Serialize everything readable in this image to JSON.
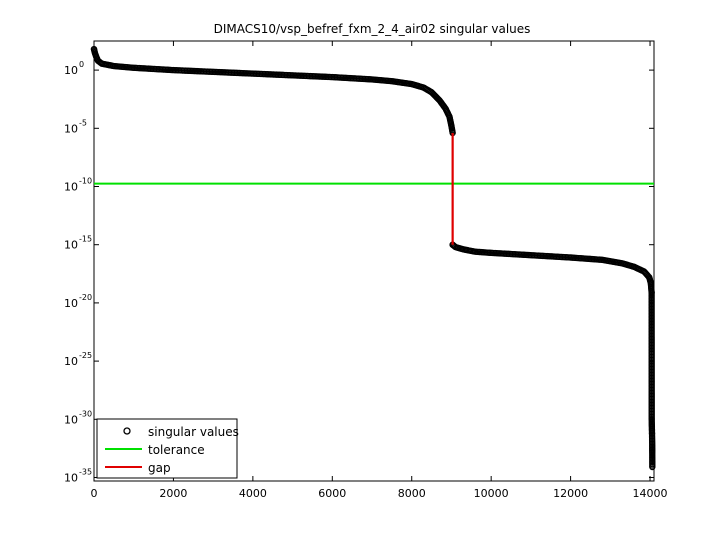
{
  "chart_data": {
    "type": "scatter",
    "title": "DIMACS10/vsp_befref_fxm_2_4_air02 singular values",
    "xlabel": "",
    "ylabel": "",
    "xlim": [
      0,
      14100
    ],
    "ylim_log10": [
      -35.3,
      2.5
    ],
    "y_scale": "log",
    "x_ticks": [
      "0",
      "2000",
      "4000",
      "6000",
      "8000",
      "10000",
      "12000",
      "14000"
    ],
    "y_ticks": [
      {
        "base": "10",
        "exp": "0"
      },
      {
        "base": "10",
        "exp": "-5"
      },
      {
        "base": "10",
        "exp": "-10"
      },
      {
        "base": "10",
        "exp": "-15"
      },
      {
        "base": "10",
        "exp": "-20"
      },
      {
        "base": "10",
        "exp": "-25"
      },
      {
        "base": "10",
        "exp": "-30"
      },
      {
        "base": "10",
        "exp": "-35"
      }
    ],
    "grid": false,
    "legend_position": "bottom-left",
    "series": [
      {
        "name": "singular values",
        "marker": "circle",
        "color": "#000000",
        "points_log10": [
          [
            0,
            1.8
          ],
          [
            20,
            1.5
          ],
          [
            50,
            1.2
          ],
          [
            100,
            0.8
          ],
          [
            200,
            0.55
          ],
          [
            500,
            0.35
          ],
          [
            1000,
            0.2
          ],
          [
            2000,
            0.0
          ],
          [
            3000,
            -0.15
          ],
          [
            4000,
            -0.3
          ],
          [
            5000,
            -0.45
          ],
          [
            6000,
            -0.6
          ],
          [
            7000,
            -0.8
          ],
          [
            7500,
            -0.95
          ],
          [
            8000,
            -1.2
          ],
          [
            8300,
            -1.5
          ],
          [
            8500,
            -1.9
          ],
          [
            8700,
            -2.6
          ],
          [
            8850,
            -3.3
          ],
          [
            8950,
            -4.0
          ],
          [
            9000,
            -4.8
          ],
          [
            9030,
            -5.4
          ],
          [
            9030,
            -15.0
          ],
          [
            9100,
            -15.2
          ],
          [
            9300,
            -15.4
          ],
          [
            9600,
            -15.6
          ],
          [
            10000,
            -15.7
          ],
          [
            11000,
            -15.9
          ],
          [
            12000,
            -16.1
          ],
          [
            12800,
            -16.3
          ],
          [
            13300,
            -16.6
          ],
          [
            13600,
            -16.9
          ],
          [
            13850,
            -17.3
          ],
          [
            13980,
            -17.8
          ],
          [
            14020,
            -18.3
          ],
          [
            14040,
            -19.1
          ],
          [
            14042,
            -29.9
          ],
          [
            14045,
            -30.5
          ],
          [
            14050,
            -31.2
          ],
          [
            14055,
            -32.1
          ],
          [
            14058,
            -34.1
          ]
        ]
      },
      {
        "name": "tolerance",
        "color": "#00e000",
        "y_log10": -9.75
      },
      {
        "name": "gap",
        "color": "#e00000",
        "x": 9030,
        "y_log10_range": [
          -5.4,
          -15.0
        ]
      }
    ]
  }
}
